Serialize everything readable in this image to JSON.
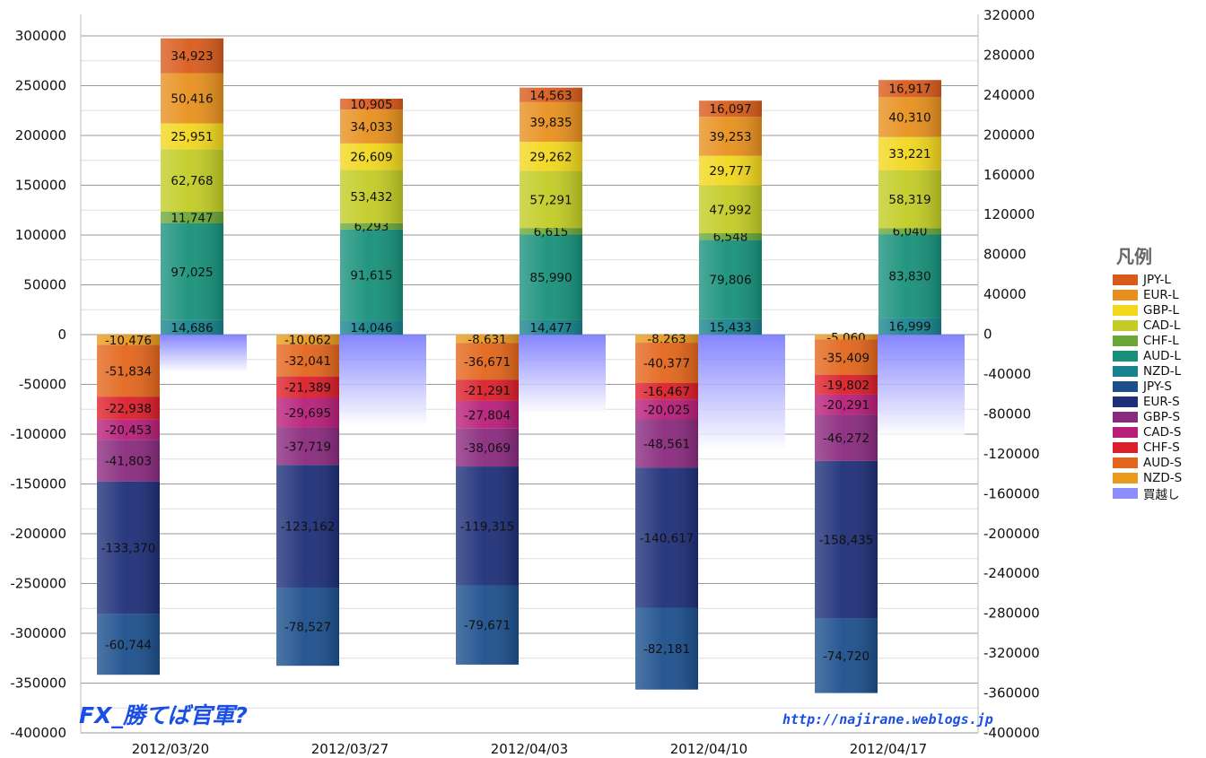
{
  "chart_data": {
    "type": "bar",
    "subtype": "stacked",
    "categories": [
      "2012/03/20",
      "2012/03/27",
      "2012/04/03",
      "2012/04/10",
      "2012/04/17"
    ],
    "left_axis": {
      "ylim": [
        -400000,
        300000
      ],
      "ticks": [
        "300000",
        "250000",
        "200000",
        "150000",
        "100000",
        "50000",
        "0",
        "-50000",
        "-100000",
        "-150000",
        "-200000",
        "-250000",
        "-300000",
        "-350000",
        "-400000"
      ]
    },
    "right_axis": {
      "ylim": [
        -400000,
        320000
      ],
      "ticks": [
        "320000",
        "280000",
        "240000",
        "200000",
        "160000",
        "120000",
        "80000",
        "40000",
        "0",
        "-40000",
        "-80000",
        "-120000",
        "-160000",
        "-200000",
        "-240000",
        "-280000",
        "-320000",
        "-360000",
        "-400000"
      ]
    },
    "grid": true,
    "legend": {
      "title": "凡例",
      "position": "right",
      "items": [
        {
          "label": "JPY-L",
          "color": "#d95b1c"
        },
        {
          "label": "EUR-L",
          "color": "#e8901e"
        },
        {
          "label": "GBP-L",
          "color": "#f2d71e"
        },
        {
          "label": "CAD-L",
          "color": "#c2cc25"
        },
        {
          "label": "CHF-L",
          "color": "#6aa737"
        },
        {
          "label": "AUD-L",
          "color": "#17917a"
        },
        {
          "label": "NZD-L",
          "color": "#18838f"
        },
        {
          "label": "JPY-S",
          "color": "#1c4f8c"
        },
        {
          "label": "EUR-S",
          "color": "#1e2f78"
        },
        {
          "label": "GBP-S",
          "color": "#8a2a7e"
        },
        {
          "label": "CAD-S",
          "color": "#b81f7a"
        },
        {
          "label": "CHF-S",
          "color": "#dc1f2a"
        },
        {
          "label": "AUD-S",
          "color": "#e3661c"
        },
        {
          "label": "NZD-S",
          "color": "#e89a1e"
        },
        {
          "label": "買越し",
          "color": "#8d8dff"
        }
      ]
    },
    "long_series": [
      {
        "name": "NZD-L",
        "values": [
          14686,
          14046,
          14477,
          15433,
          16999
        ],
        "labels": [
          "14,686",
          "14,046",
          "14,477",
          "15,433",
          "16,999"
        ]
      },
      {
        "name": "AUD-L",
        "values": [
          97025,
          91615,
          85990,
          79806,
          83830
        ],
        "labels": [
          "97,025",
          "91,615",
          "85,990",
          "79,806",
          "83,830"
        ]
      },
      {
        "name": "CHF-L",
        "values": [
          11747,
          6293,
          6615,
          6548,
          6040
        ],
        "labels": [
          "11,747",
          "6,293",
          "6,615",
          "6,548",
          "6,040"
        ]
      },
      {
        "name": "CAD-L",
        "values": [
          62768,
          53432,
          57291,
          47992,
          58319
        ],
        "labels": [
          "62,768",
          "53,432",
          "57,291",
          "47,992",
          "58,319"
        ]
      },
      {
        "name": "GBP-L",
        "values": [
          25951,
          26609,
          29262,
          29777,
          33221
        ],
        "labels": [
          "25,951",
          "26,609",
          "29,262",
          "29,777",
          "33,221"
        ]
      },
      {
        "name": "EUR-L",
        "values": [
          50416,
          34033,
          39835,
          39253,
          40310
        ],
        "labels": [
          "50,416",
          "34,033",
          "39,835",
          "39,253",
          "40,310"
        ]
      },
      {
        "name": "JPY-L",
        "values": [
          34923,
          10905,
          14563,
          16097,
          16917
        ],
        "labels": [
          "34,923",
          "10,905",
          "14,563",
          "16,097",
          "16,917"
        ]
      }
    ],
    "short_series": [
      {
        "name": "NZD-S",
        "values": [
          -10476,
          -10062,
          -8631,
          -8263,
          -5060
        ],
        "labels": [
          "-10,476",
          "-10,062",
          "-8,631",
          "-8,263",
          "-5,060"
        ]
      },
      {
        "name": "AUD-S",
        "values": [
          -51834,
          -32041,
          -36671,
          -40377,
          -35409
        ],
        "labels": [
          "-51,834",
          "-32,041",
          "-36,671",
          "-40,377",
          "-35,409"
        ]
      },
      {
        "name": "CHF-S",
        "values": [
          -22938,
          -21389,
          -21291,
          -16467,
          -19802
        ],
        "labels": [
          "-22,938",
          "-21,389",
          "-21,291",
          "-16,467",
          "-19,802"
        ]
      },
      {
        "name": "CAD-S",
        "values": [
          -20453,
          -29695,
          -27804,
          -20025,
          -20291
        ],
        "labels": [
          "-20,453",
          "-29,695",
          "-27,804",
          "-20,025",
          "-20,291"
        ]
      },
      {
        "name": "GBP-S",
        "values": [
          -41803,
          -37719,
          -38069,
          -48561,
          -46272
        ],
        "labels": [
          "-41,803",
          "-37,719",
          "-38,069",
          "-48,561",
          "-46,272"
        ]
      },
      {
        "name": "EUR-S",
        "values": [
          -133370,
          -123162,
          -119315,
          -140617,
          -158435
        ],
        "labels": [
          "-133,370",
          "-123,162",
          "-119,315",
          "-140,617",
          "-158,435"
        ]
      },
      {
        "name": "JPY-S",
        "values": [
          -60744,
          -78527,
          -79671,
          -82181,
          -74720
        ],
        "labels": [
          "-60,744",
          "-78,527",
          "-79,671",
          "-82,181",
          "-74,720"
        ]
      }
    ],
    "net_series": {
      "name": "買越し",
      "values": [
        -38000,
        -92000,
        -80000,
        -117000,
        -103000
      ]
    }
  },
  "watermarks": {
    "left": "FX_勝てば官軍?",
    "right": "http://najirane.weblogs.jp"
  }
}
